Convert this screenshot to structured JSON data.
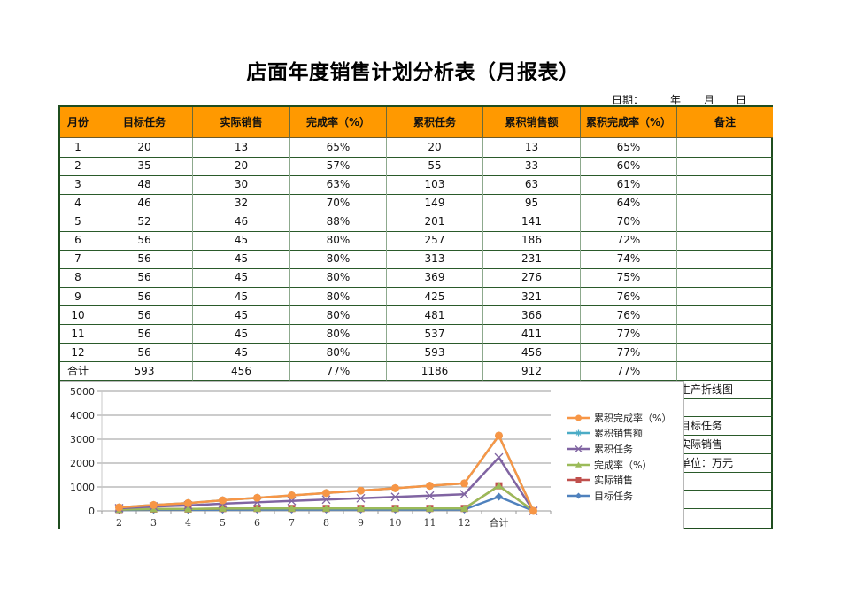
{
  "title": "店面年度销售计划分析表（月报表）",
  "date_line": {
    "label": "日期：",
    "year": "年",
    "month": "月",
    "day": "日"
  },
  "table": {
    "headers": [
      "月份",
      "目标任务",
      "实际销售",
      "完成率（%）",
      "累积任务",
      "累积销售额",
      "累积完成率（%）",
      "备注"
    ],
    "rows": [
      [
        "1",
        "20",
        "13",
        "65%",
        "20",
        "13",
        "65%",
        ""
      ],
      [
        "2",
        "35",
        "20",
        "57%",
        "55",
        "33",
        "60%",
        ""
      ],
      [
        "3",
        "48",
        "30",
        "63%",
        "103",
        "63",
        "61%",
        ""
      ],
      [
        "4",
        "46",
        "32",
        "70%",
        "149",
        "95",
        "64%",
        ""
      ],
      [
        "5",
        "52",
        "46",
        "88%",
        "201",
        "141",
        "70%",
        ""
      ],
      [
        "6",
        "56",
        "45",
        "80%",
        "257",
        "186",
        "72%",
        ""
      ],
      [
        "7",
        "56",
        "45",
        "80%",
        "313",
        "231",
        "74%",
        ""
      ],
      [
        "8",
        "56",
        "45",
        "80%",
        "369",
        "276",
        "75%",
        ""
      ],
      [
        "9",
        "56",
        "45",
        "80%",
        "425",
        "321",
        "76%",
        ""
      ],
      [
        "10",
        "56",
        "45",
        "80%",
        "481",
        "366",
        "76%",
        ""
      ],
      [
        "11",
        "56",
        "45",
        "80%",
        "537",
        "411",
        "77%",
        ""
      ],
      [
        "12",
        "56",
        "45",
        "80%",
        "593",
        "456",
        "77%",
        ""
      ],
      [
        "合计",
        "593",
        "456",
        "77%",
        "1186",
        "912",
        "77%",
        ""
      ]
    ],
    "side_notes": [
      "生产折线图",
      "",
      "目标任务",
      "实际销售",
      "单位：万元",
      "",
      "",
      ""
    ]
  },
  "colors": {
    "header_bg": "#FF9900",
    "border": "#1f4d1f"
  },
  "chart_data": {
    "type": "line",
    "stacked": true,
    "title": "",
    "xlabel": "",
    "ylabel": "",
    "ylim": [
      0,
      5000
    ],
    "y_ticks": [
      0,
      1000,
      2000,
      3000,
      4000,
      5000
    ],
    "grid": true,
    "legend_position": "right",
    "categories": [
      "2",
      "3",
      "4",
      "5",
      "6",
      "7",
      "8",
      "9",
      "10",
      "11",
      "12",
      "合计",
      ""
    ],
    "series": [
      {
        "name": "目标任务",
        "color": "#4F81BD",
        "marker": "diamond",
        "values": [
          35,
          48,
          46,
          52,
          56,
          56,
          56,
          56,
          56,
          56,
          56,
          593,
          0
        ]
      },
      {
        "name": "实际销售",
        "color": "#C0504D",
        "marker": "square",
        "values": [
          20,
          30,
          32,
          46,
          45,
          45,
          45,
          45,
          45,
          45,
          45,
          456,
          0
        ]
      },
      {
        "name": "完成率（%）",
        "color": "#9BBB59",
        "marker": "triangle",
        "values": [
          0.57,
          0.63,
          0.7,
          0.88,
          0.8,
          0.8,
          0.8,
          0.8,
          0.8,
          0.8,
          0.8,
          0.77,
          0
        ]
      },
      {
        "name": "累积任务",
        "color": "#8064A2",
        "marker": "x",
        "values": [
          55,
          103,
          149,
          201,
          257,
          313,
          369,
          425,
          481,
          537,
          593,
          1186,
          0
        ]
      },
      {
        "name": "累积销售额",
        "color": "#4BACC6",
        "marker": "star",
        "values": [
          33,
          63,
          95,
          141,
          186,
          231,
          276,
          321,
          366,
          411,
          456,
          912,
          0
        ]
      },
      {
        "name": "累积完成率（%）",
        "color": "#F79646",
        "marker": "circle",
        "values": [
          0.6,
          0.61,
          0.64,
          0.7,
          0.72,
          0.74,
          0.75,
          0.76,
          0.76,
          0.77,
          0.77,
          0.77,
          0
        ]
      }
    ]
  }
}
